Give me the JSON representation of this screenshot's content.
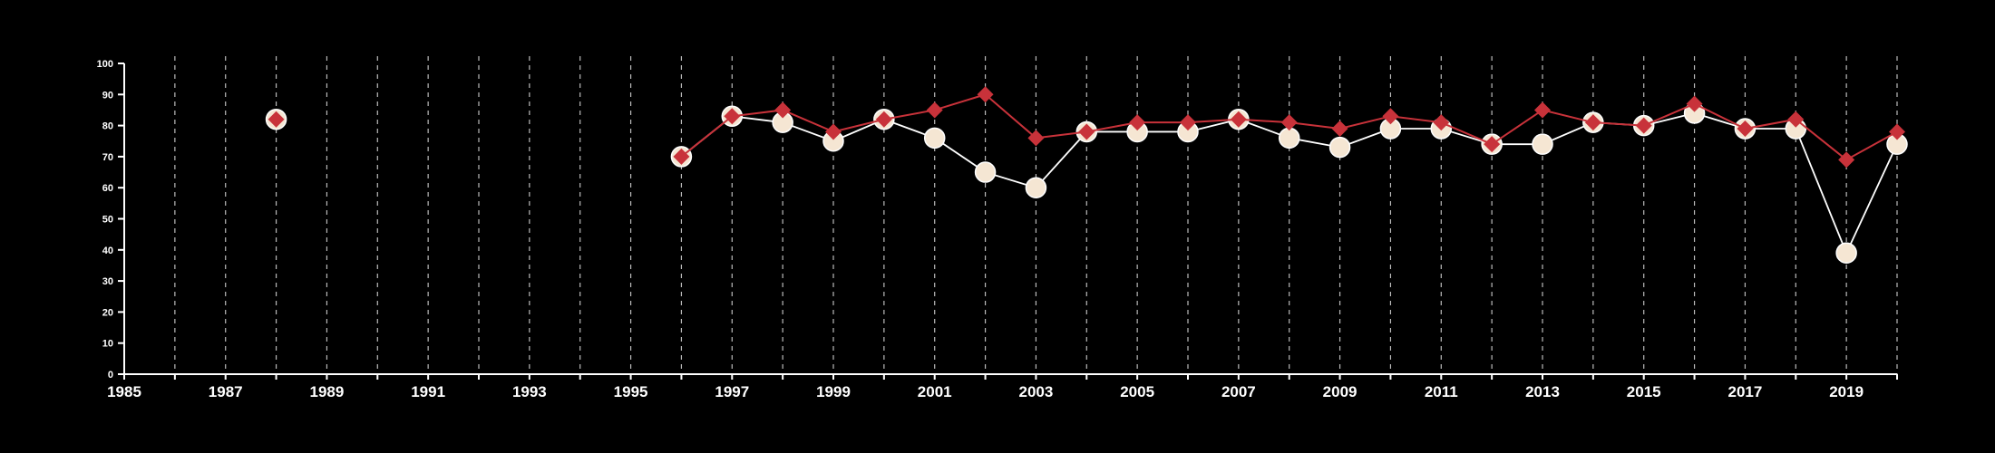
{
  "chart_data": {
    "type": "line",
    "title": "",
    "xlabel": "",
    "ylabel": "",
    "xlim": [
      1985,
      2020
    ],
    "ylim": [
      0,
      100
    ],
    "x_ticks": [
      1985,
      1987,
      1989,
      1991,
      1993,
      1995,
      1997,
      1999,
      2001,
      2003,
      2005,
      2007,
      2009,
      2011,
      2013,
      2015,
      2017,
      2019
    ],
    "y_ticks": [
      0,
      10,
      20,
      30,
      40,
      50,
      60,
      70,
      80,
      90,
      100
    ],
    "grid": "vertical dashed lines at every year",
    "legend": "none",
    "colors": {
      "background": "#000000",
      "axis": "#ffffff",
      "grid": "#bbbbbb",
      "series_circle": "#f5e6d3",
      "series_circle_line": "#ffffff",
      "series_diamond": "#c8323a"
    },
    "series": [
      {
        "marker": "circle",
        "points": [
          [
            1988,
            82
          ],
          [
            1996,
            70
          ],
          [
            1997,
            83
          ],
          [
            1998,
            81
          ],
          [
            1999,
            75
          ],
          [
            2000,
            82
          ],
          [
            2001,
            76
          ],
          [
            2002,
            65
          ],
          [
            2003,
            60
          ],
          [
            2004,
            78
          ],
          [
            2005,
            78
          ],
          [
            2006,
            78
          ],
          [
            2007,
            82
          ],
          [
            2008,
            76
          ],
          [
            2009,
            73
          ],
          [
            2010,
            79
          ],
          [
            2011,
            79
          ],
          [
            2012,
            74
          ],
          [
            2013,
            74
          ],
          [
            2014,
            81
          ],
          [
            2015,
            80
          ],
          [
            2016,
            84
          ],
          [
            2017,
            79
          ],
          [
            2018,
            79
          ],
          [
            2019,
            39
          ],
          [
            2020,
            74
          ]
        ]
      },
      {
        "marker": "diamond",
        "points": [
          [
            1988,
            82
          ],
          [
            1996,
            70
          ],
          [
            1997,
            83
          ],
          [
            1998,
            85
          ],
          [
            1999,
            78
          ],
          [
            2000,
            82
          ],
          [
            2001,
            85
          ],
          [
            2002,
            90
          ],
          [
            2003,
            76
          ],
          [
            2004,
            78
          ],
          [
            2005,
            81
          ],
          [
            2006,
            81
          ],
          [
            2007,
            82
          ],
          [
            2008,
            81
          ],
          [
            2009,
            79
          ],
          [
            2010,
            83
          ],
          [
            2011,
            81
          ],
          [
            2012,
            74
          ],
          [
            2013,
            85
          ],
          [
            2014,
            81
          ],
          [
            2015,
            80
          ],
          [
            2016,
            87
          ],
          [
            2017,
            79
          ],
          [
            2018,
            82
          ],
          [
            2019,
            69
          ],
          [
            2020,
            78
          ]
        ]
      }
    ]
  }
}
